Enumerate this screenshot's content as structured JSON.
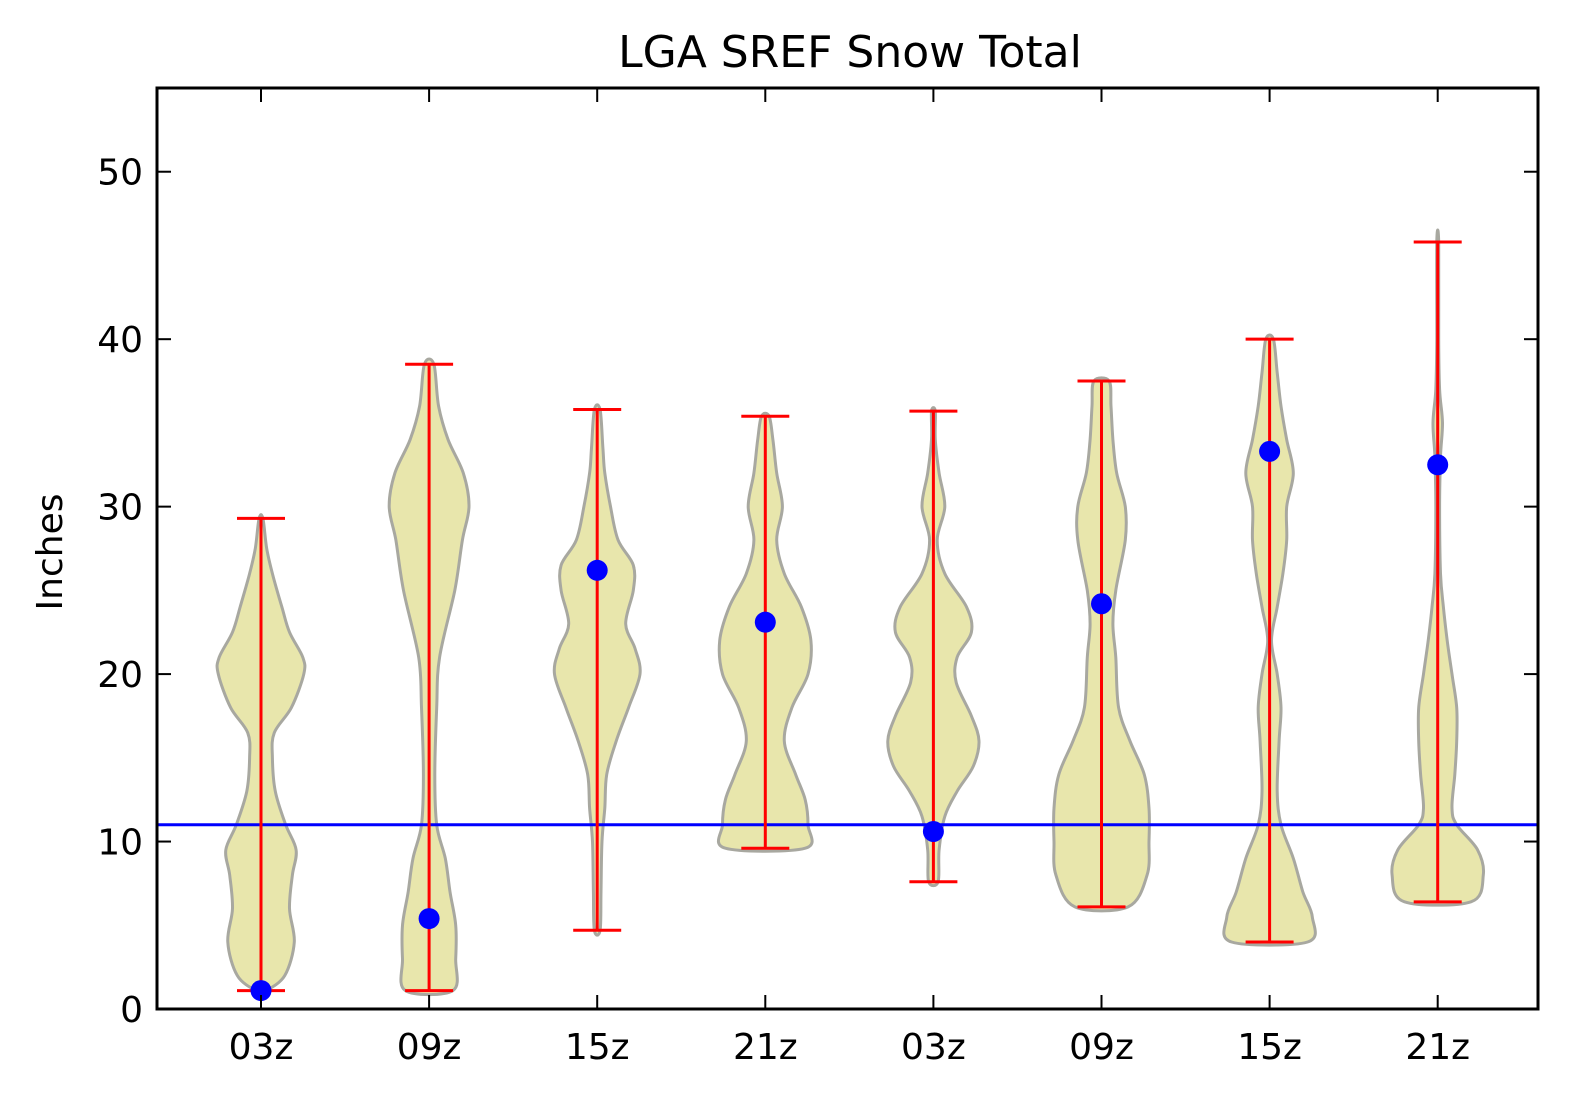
{
  "chart_data": {
    "type": "violin",
    "title": "LGA SREF Snow Total",
    "xlabel": "",
    "ylabel": "Inches",
    "ylim": [
      0,
      55
    ],
    "yticks": [
      0,
      10,
      20,
      30,
      40,
      50
    ],
    "categories": [
      "03z",
      "09z",
      "15z",
      "21z",
      "03z",
      "09z",
      "15z",
      "21z"
    ],
    "grid": false,
    "reference_line": {
      "y": 11,
      "color": "#0000ff"
    },
    "colors": {
      "violin_fill": "#e8e6ac",
      "violin_edge": "#a8a8a0",
      "range_bars": "#ff0000",
      "mean_marker": "#0000ff"
    },
    "violins": [
      {
        "category": "03z",
        "min": 1.1,
        "max": 29.3,
        "mean": 1.1,
        "profile": [
          [
            1.1,
            0.05
          ],
          [
            2,
            0.25
          ],
          [
            4,
            0.35
          ],
          [
            6,
            0.3
          ],
          [
            8,
            0.33
          ],
          [
            9.5,
            0.37
          ],
          [
            11,
            0.26
          ],
          [
            13,
            0.15
          ],
          [
            15,
            0.12
          ],
          [
            16.5,
            0.14
          ],
          [
            18,
            0.32
          ],
          [
            20,
            0.45
          ],
          [
            21,
            0.44
          ],
          [
            22.5,
            0.3
          ],
          [
            24,
            0.22
          ],
          [
            26,
            0.12
          ],
          [
            27.5,
            0.06
          ],
          [
            29.3,
            0.02
          ]
        ]
      },
      {
        "category": "09z",
        "min": 1.1,
        "max": 38.5,
        "mean": 5.4,
        "profile": [
          [
            1.1,
            0.25
          ],
          [
            3,
            0.28
          ],
          [
            5,
            0.28
          ],
          [
            7,
            0.22
          ],
          [
            9,
            0.17
          ],
          [
            11,
            0.08
          ],
          [
            14,
            0.06
          ],
          [
            18,
            0.08
          ],
          [
            21,
            0.11
          ],
          [
            25,
            0.27
          ],
          [
            28,
            0.35
          ],
          [
            30,
            0.42
          ],
          [
            32,
            0.36
          ],
          [
            34,
            0.2
          ],
          [
            36,
            0.1
          ],
          [
            38.5,
            0.05
          ]
        ]
      },
      {
        "category": "15z",
        "min": 4.7,
        "max": 35.8,
        "mean": 26.2,
        "profile": [
          [
            4.7,
            0.03
          ],
          [
            7,
            0.04
          ],
          [
            10,
            0.05
          ],
          [
            12,
            0.08
          ],
          [
            14,
            0.1
          ],
          [
            16,
            0.2
          ],
          [
            18,
            0.33
          ],
          [
            20,
            0.45
          ],
          [
            21.5,
            0.4
          ],
          [
            23,
            0.3
          ],
          [
            25,
            0.38
          ],
          [
            26.5,
            0.38
          ],
          [
            28,
            0.22
          ],
          [
            30,
            0.14
          ],
          [
            32,
            0.08
          ],
          [
            33.5,
            0.06
          ],
          [
            35.8,
            0.03
          ]
        ]
      },
      {
        "category": "21z",
        "min": 9.6,
        "max": 35.4,
        "mean": 23.1,
        "profile": [
          [
            9.6,
            0.42
          ],
          [
            11,
            0.45
          ],
          [
            12.5,
            0.42
          ],
          [
            14,
            0.32
          ],
          [
            16,
            0.2
          ],
          [
            18,
            0.28
          ],
          [
            20,
            0.45
          ],
          [
            22,
            0.48
          ],
          [
            24,
            0.38
          ],
          [
            26,
            0.2
          ],
          [
            28,
            0.12
          ],
          [
            30,
            0.18
          ],
          [
            32,
            0.12
          ],
          [
            34,
            0.08
          ],
          [
            35.4,
            0.04
          ]
        ]
      },
      {
        "category": "03z",
        "min": 7.6,
        "max": 35.7,
        "mean": 10.6,
        "profile": [
          [
            7.6,
            0.05
          ],
          [
            9.5,
            0.06
          ],
          [
            11.5,
            0.12
          ],
          [
            13,
            0.25
          ],
          [
            14.5,
            0.42
          ],
          [
            16,
            0.48
          ],
          [
            17.5,
            0.4
          ],
          [
            19.5,
            0.24
          ],
          [
            21,
            0.25
          ],
          [
            22.5,
            0.4
          ],
          [
            24,
            0.35
          ],
          [
            26,
            0.12
          ],
          [
            28,
            0.04
          ],
          [
            30,
            0.12
          ],
          [
            32,
            0.06
          ],
          [
            34,
            0.02
          ],
          [
            35.7,
            0.02
          ]
        ]
      },
      {
        "category": "09z",
        "min": 6.1,
        "max": 37.5,
        "mean": 24.2,
        "profile": [
          [
            6.1,
            0.28
          ],
          [
            8,
            0.48
          ],
          [
            10,
            0.5
          ],
          [
            12,
            0.5
          ],
          [
            14,
            0.45
          ],
          [
            16,
            0.3
          ],
          [
            18,
            0.18
          ],
          [
            21,
            0.15
          ],
          [
            23,
            0.12
          ],
          [
            25,
            0.15
          ],
          [
            28,
            0.25
          ],
          [
            30,
            0.25
          ],
          [
            32,
            0.16
          ],
          [
            34,
            0.12
          ],
          [
            36,
            0.1
          ],
          [
            37.5,
            0.08
          ]
        ]
      },
      {
        "category": "15z",
        "min": 4.0,
        "max": 40.0,
        "mean": 33.3,
        "profile": [
          [
            4.0,
            0.4
          ],
          [
            5.5,
            0.45
          ],
          [
            7,
            0.35
          ],
          [
            9,
            0.25
          ],
          [
            11,
            0.12
          ],
          [
            13,
            0.08
          ],
          [
            16,
            0.1
          ],
          [
            18,
            0.12
          ],
          [
            20,
            0.08
          ],
          [
            22,
            0.02
          ],
          [
            24,
            0.08
          ],
          [
            26,
            0.14
          ],
          [
            28,
            0.18
          ],
          [
            30,
            0.18
          ],
          [
            32,
            0.25
          ],
          [
            34,
            0.18
          ],
          [
            36,
            0.12
          ],
          [
            38,
            0.08
          ],
          [
            40.0,
            0.04
          ]
        ]
      },
      {
        "category": "21z",
        "min": 6.4,
        "max": 45.8,
        "mean": 32.5,
        "profile": [
          [
            6.4,
            0.35
          ],
          [
            8,
            0.48
          ],
          [
            9.5,
            0.42
          ],
          [
            11,
            0.2
          ],
          [
            12,
            0.15
          ],
          [
            14,
            0.18
          ],
          [
            16,
            0.2
          ],
          [
            18,
            0.2
          ],
          [
            20,
            0.15
          ],
          [
            22,
            0.1
          ],
          [
            24,
            0.06
          ],
          [
            26,
            0.03
          ],
          [
            30,
            0.02
          ],
          [
            33,
            0.03
          ],
          [
            35,
            0.05
          ],
          [
            37,
            0.02
          ],
          [
            40,
            0.01
          ],
          [
            45.8,
            0.01
          ]
        ]
      }
    ]
  }
}
